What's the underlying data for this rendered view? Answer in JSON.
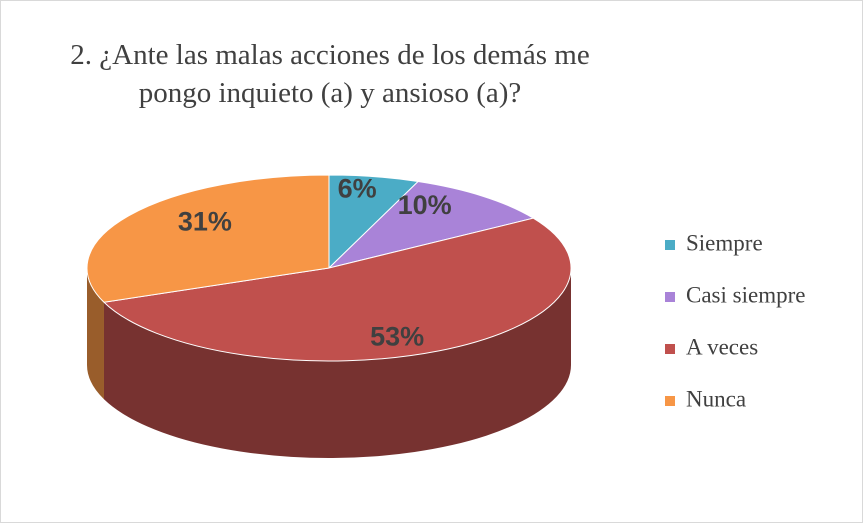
{
  "chart_data": {
    "type": "pie3d",
    "title": "2.  ¿Ante las malas acciones de los demás me pongo inquieto (a) y ansioso (a)?",
    "categories": [
      "Siempre",
      "Casi siempre",
      "A veces",
      "Nunca"
    ],
    "values": [
      6,
      10,
      53,
      31
    ],
    "value_labels": [
      "6%",
      "10%",
      "53%",
      "31%"
    ],
    "colors": [
      "#4bacc6",
      "#a983d8",
      "#c0504d",
      "#f79646"
    ],
    "legend": "right"
  }
}
